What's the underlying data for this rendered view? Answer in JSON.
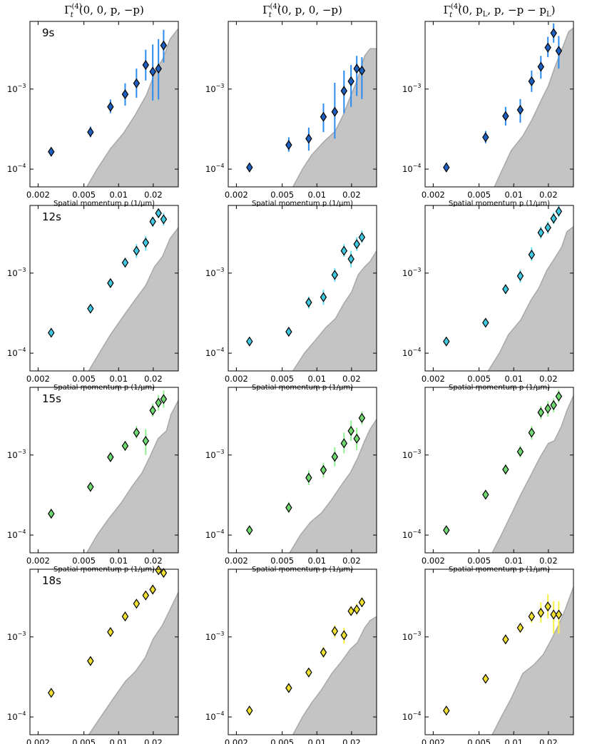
{
  "figure": {
    "column_titles": [
      {
        "base": "Γ",
        "sup": "(4)",
        "sub": "t",
        "args": "(0, 0, p, −p)"
      },
      {
        "base": "Γ",
        "sup": "(4)",
        "sub": "t",
        "args": "(0, p, 0, −p)"
      },
      {
        "base": "Γ",
        "sup": "(4)",
        "sub": "t",
        "args": "(0, p",
        "sub2": "L",
        "args2": ", p, −p − p",
        "sub3": "L",
        "args3": ")"
      }
    ],
    "row_labels": [
      "9s",
      "12s",
      "15s",
      "18s"
    ],
    "row_colors": [
      "#1f5fbf",
      "#40c8e0",
      "#70d870",
      "#f0e030"
    ],
    "row_bar_colors": [
      "#2a8cf0",
      "#60e0f0",
      "#90f090",
      "#f8f040"
    ],
    "band_color": "#c4c4c4",
    "band_edge_color": "#a8a8a8",
    "xlabel": "Spatial momentum p (1/μm)",
    "x_ticks": [
      {
        "value": 0.002,
        "label": "0.002"
      },
      {
        "value": 0.005,
        "label": "0.005"
      },
      {
        "value": 0.01,
        "label": "0.01"
      },
      {
        "value": 0.02,
        "label": "0.02"
      }
    ],
    "y_ticks": [
      {
        "value": 0.0001,
        "base": "10",
        "exp": "−4"
      },
      {
        "value": 0.001,
        "base": "10",
        "exp": "−3"
      }
    ]
  },
  "chart_data": [
    {
      "type": "scatter",
      "row": "9s",
      "column": 0,
      "xlim": [
        0.0017,
        0.033
      ],
      "ylim": [
        6e-05,
        0.007
      ],
      "log_x": true,
      "log_y": true,
      "x": [
        0.0026,
        0.0057,
        0.0085,
        0.0114,
        0.0143,
        0.0172,
        0.0198,
        0.0222,
        0.0246
      ],
      "y": [
        0.000165,
        0.00029,
        0.0006,
        0.00086,
        0.00118,
        0.002,
        0.00165,
        0.0018,
        0.0035
      ],
      "yerr_low": [
        0.000145,
        0.00025,
        0.0005,
        0.00062,
        0.00078,
        0.00128,
        0.00072,
        0.00074,
        0.00215
      ],
      "yerr_high": [
        0.000185,
        0.00034,
        0.00074,
        0.00118,
        0.0018,
        0.0031,
        0.0036,
        0.0042,
        0.0055
      ],
      "band_x": [
        0.0053,
        0.0065,
        0.0085,
        0.011,
        0.014,
        0.0175,
        0.021,
        0.0243,
        0.028,
        0.033
      ],
      "band_y": [
        6e-05,
        0.0001,
        0.00018,
        0.00028,
        0.00048,
        0.00085,
        0.0017,
        0.0024,
        0.0042,
        0.0057
      ]
    },
    {
      "type": "scatter",
      "row": "9s",
      "column": 1,
      "xlim": [
        0.0017,
        0.033
      ],
      "ylim": [
        6e-05,
        0.007
      ],
      "log_x": true,
      "log_y": true,
      "x": [
        0.0026,
        0.0057,
        0.0085,
        0.0114,
        0.0143,
        0.0172,
        0.0198,
        0.0222,
        0.0246
      ],
      "y": [
        0.000105,
        0.0002,
        0.00024,
        0.00045,
        0.00052,
        0.00095,
        0.00125,
        0.0018,
        0.0017
      ],
      "yerr_low": [
        9.2e-05,
        0.000165,
        0.00017,
        0.00029,
        0.00024,
        0.0005,
        0.0006,
        0.00082,
        0.00075
      ],
      "yerr_high": [
        0.00012,
        0.00025,
        0.00033,
        0.00066,
        0.0012,
        0.0017,
        0.002,
        0.0026,
        0.0025
      ],
      "band_x": [
        0.0062,
        0.0075,
        0.009,
        0.0115,
        0.0145,
        0.017,
        0.0195,
        0.0225,
        0.026,
        0.029,
        0.033
      ],
      "band_y": [
        6e-05,
        0.0001,
        0.00015,
        0.00022,
        0.0003,
        0.00048,
        0.0008,
        0.0013,
        0.0026,
        0.0032,
        0.0032
      ]
    },
    {
      "type": "scatter",
      "row": "9s",
      "column": 2,
      "xlim": [
        0.0017,
        0.033
      ],
      "ylim": [
        6e-05,
        0.007
      ],
      "log_x": true,
      "log_y": true,
      "x": [
        0.0026,
        0.0057,
        0.0085,
        0.0114,
        0.0143,
        0.0172,
        0.0198,
        0.0222,
        0.0246
      ],
      "y": [
        0.000105,
        0.00025,
        0.00046,
        0.00055,
        0.00125,
        0.0019,
        0.0033,
        0.005,
        0.003
      ],
      "yerr_low": [
        9.2e-05,
        0.00021,
        0.00035,
        0.00038,
        0.00092,
        0.00135,
        0.0025,
        0.0038,
        0.0018
      ],
      "yerr_high": [
        0.00012,
        0.0003,
        0.0006,
        0.00075,
        0.0017,
        0.0026,
        0.0045,
        0.0066,
        0.0046
      ],
      "band_x": [
        0.0068,
        0.008,
        0.0095,
        0.012,
        0.0145,
        0.0175,
        0.02,
        0.0225,
        0.027,
        0.03,
        0.033
      ],
      "band_y": [
        6e-05,
        0.0001,
        0.00017,
        0.00026,
        0.00042,
        0.00075,
        0.0011,
        0.0018,
        0.0035,
        0.0052,
        0.0058
      ]
    },
    {
      "type": "scatter",
      "row": "12s",
      "column": 0,
      "xlim": [
        0.0017,
        0.033
      ],
      "ylim": [
        6e-05,
        0.007
      ],
      "log_x": true,
      "log_y": true,
      "x": [
        0.0026,
        0.0057,
        0.0085,
        0.0114,
        0.0143,
        0.0172,
        0.0198,
        0.0222,
        0.0246
      ],
      "y": [
        0.00018,
        0.00036,
        0.00075,
        0.00135,
        0.0019,
        0.0024,
        0.0044,
        0.0056,
        0.0047
      ],
      "yerr_low": [
        0.00017,
        0.00033,
        0.00068,
        0.00118,
        0.00155,
        0.0019,
        0.0038,
        0.0049,
        0.0039
      ],
      "yerr_high": [
        0.00019,
        0.0004,
        0.00083,
        0.00155,
        0.0023,
        0.0029,
        0.005,
        0.0064,
        0.0056
      ],
      "band_x": [
        0.0055,
        0.0068,
        0.0085,
        0.011,
        0.014,
        0.0172,
        0.0205,
        0.024,
        0.028,
        0.033
      ],
      "band_y": [
        6e-05,
        0.0001,
        0.00017,
        0.00029,
        0.00047,
        0.0007,
        0.0012,
        0.0016,
        0.0027,
        0.0037
      ]
    },
    {
      "type": "scatter",
      "row": "12s",
      "column": 1,
      "xlim": [
        0.0017,
        0.033
      ],
      "ylim": [
        6e-05,
        0.007
      ],
      "log_x": true,
      "log_y": true,
      "x": [
        0.0026,
        0.0057,
        0.0085,
        0.0114,
        0.0143,
        0.0172,
        0.0198,
        0.0222,
        0.0246
      ],
      "y": [
        0.00014,
        0.000185,
        0.00043,
        0.0005,
        0.00095,
        0.0019,
        0.0015,
        0.0023,
        0.0028
      ],
      "yerr_low": [
        0.00013,
        0.00017,
        0.00036,
        0.0004,
        0.00078,
        0.0016,
        0.00118,
        0.0019,
        0.0024
      ],
      "yerr_high": [
        0.00015,
        0.0002,
        0.00051,
        0.00062,
        0.00115,
        0.0023,
        0.0019,
        0.0028,
        0.0034
      ],
      "band_x": [
        0.0062,
        0.0078,
        0.0095,
        0.012,
        0.0145,
        0.0172,
        0.02,
        0.0228,
        0.026,
        0.029,
        0.033
      ],
      "band_y": [
        6e-05,
        0.0001,
        0.00014,
        0.00021,
        0.00027,
        0.00042,
        0.00058,
        0.00095,
        0.0012,
        0.0014,
        0.0019
      ]
    },
    {
      "type": "scatter",
      "row": "12s",
      "column": 2,
      "xlim": [
        0.0017,
        0.033
      ],
      "ylim": [
        6e-05,
        0.007
      ],
      "log_x": true,
      "log_y": true,
      "x": [
        0.0026,
        0.0057,
        0.0085,
        0.0114,
        0.0143,
        0.0172,
        0.0198,
        0.0222,
        0.0246
      ],
      "y": [
        0.00014,
        0.00024,
        0.00063,
        0.00092,
        0.0017,
        0.0032,
        0.0037,
        0.0048,
        0.0059
      ],
      "yerr_low": [
        0.00013,
        0.00022,
        0.00055,
        0.00076,
        0.00142,
        0.0027,
        0.0031,
        0.0041,
        0.005
      ],
      "yerr_high": [
        0.00015,
        0.00026,
        0.00072,
        0.0011,
        0.0021,
        0.0038,
        0.0044,
        0.0057,
        0.007
      ],
      "band_x": [
        0.006,
        0.0075,
        0.009,
        0.0115,
        0.014,
        0.0165,
        0.0195,
        0.0225,
        0.026,
        0.029,
        0.033
      ],
      "band_y": [
        6e-05,
        0.0001,
        0.00017,
        0.00026,
        0.00045,
        0.00065,
        0.0011,
        0.0015,
        0.0021,
        0.0033,
        0.0038
      ]
    },
    {
      "type": "scatter",
      "row": "15s",
      "column": 0,
      "xlim": [
        0.0017,
        0.033
      ],
      "ylim": [
        6e-05,
        0.007
      ],
      "log_x": true,
      "log_y": true,
      "x": [
        0.0026,
        0.0057,
        0.0085,
        0.0114,
        0.0143,
        0.0172,
        0.0198,
        0.0222,
        0.0246
      ],
      "y": [
        0.000185,
        0.0004,
        0.00094,
        0.0013,
        0.0019,
        0.0015,
        0.0036,
        0.0045,
        0.005
      ],
      "yerr_low": [
        0.000172,
        0.00037,
        0.00085,
        0.00112,
        0.0016,
        0.001,
        0.003,
        0.0036,
        0.0039
      ],
      "yerr_high": [
        0.000198,
        0.00044,
        0.00104,
        0.0015,
        0.0023,
        0.0021,
        0.0044,
        0.0056,
        0.0064
      ],
      "band_x": [
        0.0053,
        0.0065,
        0.0082,
        0.0105,
        0.013,
        0.016,
        0.019,
        0.022,
        0.026,
        0.0285,
        0.033
      ],
      "band_y": [
        6e-05,
        0.0001,
        0.00016,
        0.00025,
        0.0004,
        0.0006,
        0.001,
        0.0016,
        0.002,
        0.0032,
        0.0048
      ]
    },
    {
      "type": "scatter",
      "row": "15s",
      "column": 1,
      "xlim": [
        0.0017,
        0.033
      ],
      "ylim": [
        6e-05,
        0.007
      ],
      "log_x": true,
      "log_y": true,
      "x": [
        0.0026,
        0.0057,
        0.0085,
        0.0114,
        0.0143,
        0.0172,
        0.0198,
        0.0222,
        0.0246
      ],
      "y": [
        0.000115,
        0.00022,
        0.00052,
        0.00065,
        0.00095,
        0.0014,
        0.002,
        0.0016,
        0.0029
      ],
      "yerr_low": [
        0.000108,
        0.00019,
        0.00042,
        0.00052,
        0.00072,
        0.00105,
        0.0015,
        0.00115,
        0.0024
      ],
      "yerr_high": [
        0.000122,
        0.00026,
        0.00064,
        0.0008,
        0.00125,
        0.0019,
        0.0027,
        0.0022,
        0.0035
      ],
      "band_x": [
        0.0058,
        0.0072,
        0.0088,
        0.011,
        0.0135,
        0.0165,
        0.0195,
        0.0225,
        0.026,
        0.029,
        0.033
      ],
      "band_y": [
        6e-05,
        0.0001,
        0.000145,
        0.00019,
        0.00028,
        0.00043,
        0.0006,
        0.0009,
        0.0015,
        0.0021,
        0.0028
      ]
    },
    {
      "type": "scatter",
      "row": "15s",
      "column": 2,
      "xlim": [
        0.0017,
        0.033
      ],
      "ylim": [
        6e-05,
        0.007
      ],
      "log_x": true,
      "log_y": true,
      "x": [
        0.0026,
        0.0057,
        0.0085,
        0.0114,
        0.0143,
        0.0172,
        0.0198,
        0.0222,
        0.0246
      ],
      "y": [
        0.000115,
        0.00032,
        0.00066,
        0.0011,
        0.0019,
        0.0034,
        0.0038,
        0.0042,
        0.0054
      ],
      "yerr_low": [
        0.000108,
        0.00029,
        0.00057,
        0.00093,
        0.00155,
        0.0028,
        0.003,
        0.0034,
        0.0045
      ],
      "yerr_high": [
        0.000122,
        0.00036,
        0.00076,
        0.0013,
        0.0023,
        0.0041,
        0.0047,
        0.0051,
        0.0065
      ],
      "band_x": [
        0.0065,
        0.0078,
        0.0095,
        0.0115,
        0.014,
        0.017,
        0.02,
        0.0225,
        0.026,
        0.029,
        0.033
      ],
      "band_y": [
        6e-05,
        0.0001,
        0.00018,
        0.00032,
        0.00055,
        0.00095,
        0.0014,
        0.0015,
        0.0023,
        0.0036,
        0.0055
      ]
    },
    {
      "type": "scatter",
      "row": "18s",
      "column": 0,
      "xlim": [
        0.0017,
        0.033
      ],
      "ylim": [
        6e-05,
        0.007
      ],
      "log_x": true,
      "log_y": true,
      "x": [
        0.0026,
        0.0057,
        0.0085,
        0.0114,
        0.0143,
        0.0172,
        0.0198,
        0.0222,
        0.0246
      ],
      "y": [
        0.0002,
        0.0005,
        0.00115,
        0.0018,
        0.0026,
        0.0033,
        0.0039,
        0.0068,
        0.0063
      ],
      "yerr_low": [
        0.00019,
        0.00047,
        0.00108,
        0.00168,
        0.00243,
        0.0031,
        0.00365,
        0.0064,
        0.0059
      ],
      "yerr_high": [
        0.00021,
        0.00053,
        0.00122,
        0.00192,
        0.00277,
        0.0035,
        0.00415,
        0.0072,
        0.0067
      ],
      "band_x": [
        0.0055,
        0.007,
        0.009,
        0.0115,
        0.014,
        0.017,
        0.02,
        0.024,
        0.028,
        0.033
      ],
      "band_y": [
        6e-05,
        0.0001,
        0.00017,
        0.00028,
        0.00037,
        0.00055,
        0.00095,
        0.0014,
        0.0022,
        0.0036
      ]
    },
    {
      "type": "scatter",
      "row": "18s",
      "column": 1,
      "xlim": [
        0.0017,
        0.033
      ],
      "ylim": [
        6e-05,
        0.007
      ],
      "log_x": true,
      "log_y": true,
      "x": [
        0.0026,
        0.0057,
        0.0085,
        0.0114,
        0.0143,
        0.0172,
        0.0198,
        0.0222,
        0.0246
      ],
      "y": [
        0.00012,
        0.00023,
        0.00036,
        0.00064,
        0.00118,
        0.00105,
        0.0021,
        0.0022,
        0.0027
      ],
      "yerr_low": [
        0.000112,
        0.00021,
        0.00032,
        0.00055,
        0.00098,
        0.00082,
        0.00185,
        0.0019,
        0.0024
      ],
      "yerr_high": [
        0.000128,
        0.00025,
        0.0004,
        0.00075,
        0.0014,
        0.0013,
        0.0024,
        0.0026,
        0.0031
      ],
      "band_x": [
        0.0062,
        0.0075,
        0.009,
        0.011,
        0.0135,
        0.0165,
        0.0195,
        0.0225,
        0.026,
        0.029,
        0.033
      ],
      "band_y": [
        6e-05,
        0.0001,
        0.00015,
        0.00022,
        0.00035,
        0.0005,
        0.0007,
        0.00085,
        0.0013,
        0.0016,
        0.0018
      ]
    },
    {
      "type": "scatter",
      "row": "18s",
      "column": 2,
      "xlim": [
        0.0017,
        0.033
      ],
      "ylim": [
        6e-05,
        0.007
      ],
      "log_x": true,
      "log_y": true,
      "x": [
        0.0026,
        0.0057,
        0.0085,
        0.0114,
        0.0143,
        0.0172,
        0.0198,
        0.0222,
        0.0246
      ],
      "y": [
        0.00012,
        0.0003,
        0.00093,
        0.0013,
        0.0018,
        0.002,
        0.0024,
        0.0019,
        0.0019
      ],
      "yerr_low": [
        0.000112,
        0.00028,
        0.00083,
        0.00112,
        0.0015,
        0.0015,
        0.0017,
        0.0011,
        0.0011
      ],
      "yerr_high": [
        0.000128,
        0.00032,
        0.00104,
        0.00148,
        0.0021,
        0.0027,
        0.0034,
        0.0028,
        0.0028
      ],
      "band_x": [
        0.0065,
        0.0078,
        0.0095,
        0.012,
        0.015,
        0.018,
        0.021,
        0.0245,
        0.028,
        0.033
      ],
      "band_y": [
        6e-05,
        0.0001,
        0.00017,
        0.00035,
        0.00045,
        0.0006,
        0.0009,
        0.0014,
        0.0022,
        0.0042
      ]
    }
  ]
}
